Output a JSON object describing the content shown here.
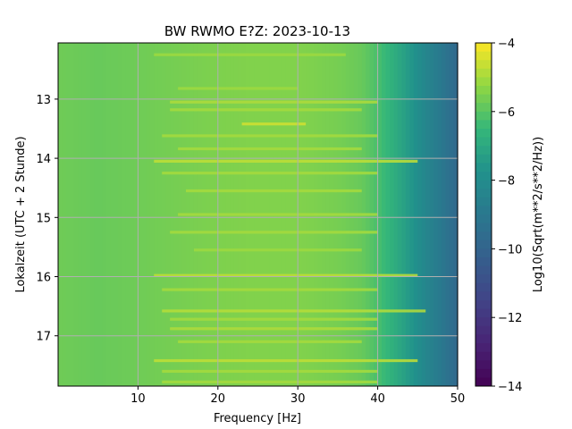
{
  "chart_data": {
    "type": "heatmap",
    "title": "BW RWMO  E?Z: 2023-10-13",
    "xlabel": "Frequency [Hz]",
    "ylabel": "Lokalzeit (UTC + 2 Stunde)",
    "colorbar_label": "Log10(Sqrt(m**2/s**2/Hz))",
    "colormap": "viridis",
    "grid": true,
    "x_range": [
      0,
      50
    ],
    "y_range": [
      12.05,
      17.85
    ],
    "y_inverted": true,
    "color_range": [
      -14,
      -4
    ],
    "x_ticks": [
      10,
      20,
      30,
      40,
      50
    ],
    "x_tick_labels": [
      "10",
      "20",
      "30",
      "40",
      "50"
    ],
    "y_ticks": [
      13,
      14,
      15,
      16,
      17
    ],
    "y_tick_labels": [
      "13",
      "14",
      "15",
      "16",
      "17"
    ],
    "colorbar_ticks": [
      -4,
      -6,
      -8,
      -10,
      -12,
      -14
    ],
    "colorbar_tick_labels": [
      "−4",
      "−6",
      "−8",
      "−10",
      "−12",
      "−14"
    ],
    "frequency_profile": {
      "x": [
        0,
        5,
        10,
        15,
        20,
        25,
        30,
        35,
        38,
        40,
        42,
        44,
        46,
        48,
        50
      ],
      "values": [
        -5.7,
        -5.8,
        -5.7,
        -5.6,
        -5.5,
        -5.45,
        -5.45,
        -5.6,
        -5.8,
        -6.2,
        -6.8,
        -7.5,
        -8.3,
        -9.0,
        -9.8
      ]
    },
    "bright_bands": [
      {
        "y": 12.25,
        "x_start": 12,
        "x_end": 36,
        "level": -5.1
      },
      {
        "y": 12.82,
        "x_start": 15,
        "x_end": 30,
        "level": -5.1
      },
      {
        "y": 13.05,
        "x_start": 14,
        "x_end": 40,
        "level": -4.9
      },
      {
        "y": 13.18,
        "x_start": 14,
        "x_end": 38,
        "level": -5.0
      },
      {
        "y": 13.42,
        "x_start": 23,
        "x_end": 31,
        "level": -4.5
      },
      {
        "y": 13.62,
        "x_start": 13,
        "x_end": 40,
        "level": -5.0
      },
      {
        "y": 13.84,
        "x_start": 15,
        "x_end": 38,
        "level": -5.0
      },
      {
        "y": 14.05,
        "x_start": 12,
        "x_end": 45,
        "level": -4.7
      },
      {
        "y": 14.25,
        "x_start": 13,
        "x_end": 40,
        "level": -5.0
      },
      {
        "y": 14.55,
        "x_start": 16,
        "x_end": 38,
        "level": -5.0
      },
      {
        "y": 14.95,
        "x_start": 15,
        "x_end": 40,
        "level": -5.0
      },
      {
        "y": 15.25,
        "x_start": 14,
        "x_end": 40,
        "level": -5.0
      },
      {
        "y": 15.55,
        "x_start": 17,
        "x_end": 38,
        "level": -5.1
      },
      {
        "y": 15.98,
        "x_start": 12,
        "x_end": 45,
        "level": -4.7
      },
      {
        "y": 16.22,
        "x_start": 13,
        "x_end": 40,
        "level": -5.0
      },
      {
        "y": 16.58,
        "x_start": 13,
        "x_end": 46,
        "level": -4.8
      },
      {
        "y": 16.72,
        "x_start": 14,
        "x_end": 40,
        "level": -5.0
      },
      {
        "y": 16.88,
        "x_start": 14,
        "x_end": 40,
        "level": -4.9
      },
      {
        "y": 17.1,
        "x_start": 15,
        "x_end": 38,
        "level": -5.0
      },
      {
        "y": 17.42,
        "x_start": 12,
        "x_end": 45,
        "level": -4.7
      },
      {
        "y": 17.6,
        "x_start": 13,
        "x_end": 40,
        "level": -5.0
      },
      {
        "y": 17.78,
        "x_start": 13,
        "x_end": 40,
        "level": -5.0
      }
    ]
  }
}
